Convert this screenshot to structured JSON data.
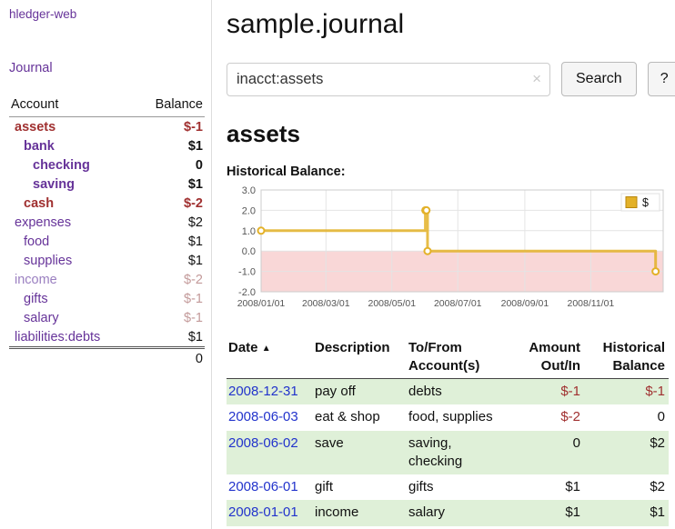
{
  "app": {
    "title": "hledger-web"
  },
  "sidebar": {
    "journal_link": "Journal",
    "table": {
      "headers": {
        "account": "Account",
        "balance": "Balance"
      },
      "rows": [
        {
          "name": "assets",
          "balance": "$-1",
          "indent": 0,
          "bold": true,
          "name_color": "#a03030",
          "balance_color": "#a03030"
        },
        {
          "name": "bank",
          "balance": "$1",
          "indent": 1,
          "bold": true,
          "name_color": "#663399",
          "balance_color": "#111111"
        },
        {
          "name": "checking",
          "balance": "0",
          "indent": 2,
          "bold": true,
          "name_color": "#663399",
          "balance_color": "#111111"
        },
        {
          "name": "saving",
          "balance": "$1",
          "indent": 2,
          "bold": true,
          "name_color": "#663399",
          "balance_color": "#111111"
        },
        {
          "name": "cash",
          "balance": "$-2",
          "indent": 1,
          "bold": true,
          "name_color": "#a03030",
          "balance_color": "#a03030"
        },
        {
          "name": "expenses",
          "balance": "$2",
          "indent": 0,
          "bold": false,
          "name_color": "#663399",
          "balance_color": "#111111"
        },
        {
          "name": "food",
          "balance": "$1",
          "indent": 1,
          "bold": false,
          "name_color": "#663399",
          "balance_color": "#111111"
        },
        {
          "name": "supplies",
          "balance": "$1",
          "indent": 1,
          "bold": false,
          "name_color": "#663399",
          "balance_color": "#111111"
        },
        {
          "name": "income",
          "balance": "$-2",
          "indent": 0,
          "bold": false,
          "name_color": "#9a7fc0",
          "balance_color": "#c39a9a"
        },
        {
          "name": "gifts",
          "balance": "$-1",
          "indent": 1,
          "bold": false,
          "name_color": "#663399",
          "balance_color": "#c39a9a"
        },
        {
          "name": "salary",
          "balance": "$-1",
          "indent": 1,
          "bold": false,
          "name_color": "#663399",
          "balance_color": "#c39a9a"
        },
        {
          "name": "liabilities:debts",
          "balance": "$1",
          "indent": 0,
          "bold": false,
          "name_color": "#663399",
          "balance_color": "#111111"
        }
      ],
      "total": "0"
    }
  },
  "main": {
    "title": "sample.journal",
    "search": {
      "value": "inacct:assets",
      "clear_icon": "×",
      "button_label": "Search",
      "help_label": "?"
    },
    "section_title": "assets",
    "chart_title": "Historical Balance:"
  },
  "chart_data": {
    "type": "line",
    "step": true,
    "title": "Historical Balance",
    "series": [
      {
        "name": "$",
        "color": "#e3b128",
        "points": [
          [
            "2008-01-01",
            1
          ],
          [
            "2008-06-01",
            2
          ],
          [
            "2008-06-02",
            2
          ],
          [
            "2008-06-03",
            0
          ],
          [
            "2008-12-31",
            -1
          ]
        ]
      }
    ],
    "ylim": [
      -2,
      3
    ],
    "ytick_labels": [
      "3.0",
      "2.0",
      "1.0",
      "0.0",
      "-1.0",
      "-2.0"
    ],
    "xtick_labels": [
      "2008/01/01",
      "2008/03/01",
      "2008/05/01",
      "2008/07/01",
      "2008/09/01",
      "2008/11/01"
    ],
    "x_origin": "2008-01-01",
    "x_range_days": 372,
    "grid": true,
    "negative_fill": "#f9d7d7",
    "legend": {
      "label": "$",
      "position": "top-right"
    }
  },
  "register": {
    "headers": {
      "date": "Date",
      "sort_icon": "▲",
      "description": "Description",
      "accounts_line1": "To/From",
      "accounts_line2": "Account(s)",
      "amount_line1": "Amount",
      "amount_line2": "Out/In",
      "balance_line1": "Historical",
      "balance_line2": "Balance"
    },
    "rows": [
      {
        "date": "2008-12-31",
        "description": "pay off",
        "accounts": "debts",
        "amount": "$-1",
        "balance": "$-1"
      },
      {
        "date": "2008-06-03",
        "description": "eat & shop",
        "accounts": "food, supplies",
        "amount": "$-2",
        "balance": "0"
      },
      {
        "date": "2008-06-02",
        "description": "save",
        "accounts": "saving, checking",
        "amount": "0",
        "balance": "$2"
      },
      {
        "date": "2008-06-01",
        "description": "gift",
        "accounts": "gifts",
        "amount": "$1",
        "balance": "$2"
      },
      {
        "date": "2008-01-01",
        "description": "income",
        "accounts": "salary",
        "amount": "$1",
        "balance": "$1"
      }
    ],
    "colors": {
      "negative": "#a03030",
      "date_link": "#2233cc",
      "row_highlight": "#dff0d8"
    }
  }
}
